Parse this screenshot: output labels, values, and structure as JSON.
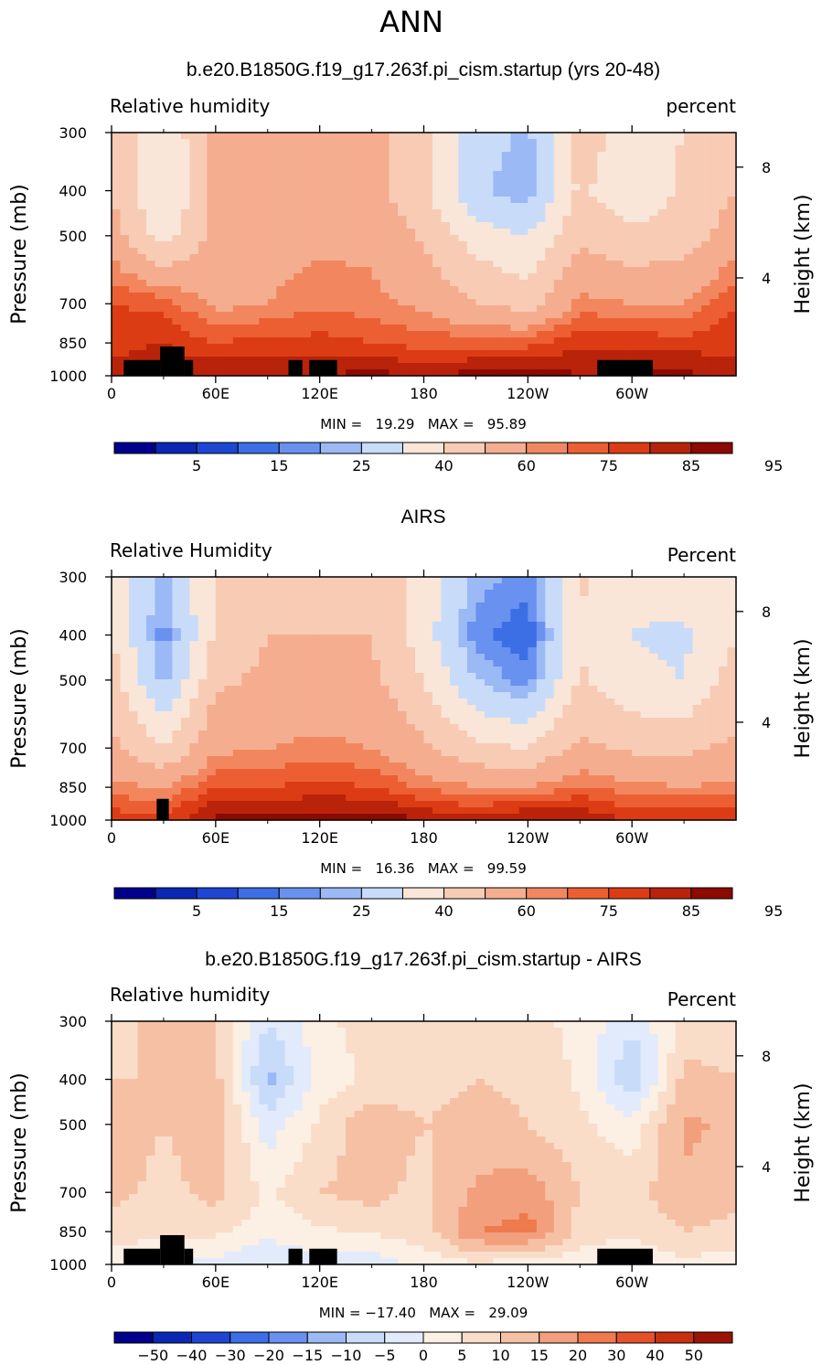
{
  "page_title": "ANN",
  "panels": [
    {
      "title": "b.e20.B1850G.f19_g17.263f.pi_cism.startup (yrs 20-48)",
      "left_label": "Relative humidity",
      "right_label": "percent",
      "min_text": "MIN =   19.29   MAX =   95.89",
      "colorbar_labels": [
        "5",
        "15",
        "25",
        "40",
        "60",
        "75",
        "85",
        "95"
      ]
    },
    {
      "title": "AIRS",
      "left_label": "Relative Humidity",
      "right_label": "Percent",
      "min_text": "MIN =   16.36   MAX =   99.59",
      "colorbar_labels": [
        "5",
        "15",
        "25",
        "40",
        "60",
        "75",
        "85",
        "95"
      ]
    },
    {
      "title": "b.e20.B1850G.f19_g17.263f.pi_cism.startup - AIRS",
      "left_label": "Relative humidity",
      "right_label": "Percent",
      "min_text": "MIN = −17.40   MAX =   29.09",
      "colorbar_labels": [
        "−50",
        "−40",
        "−30",
        "−20",
        "−15",
        "−10",
        "−5",
        "0",
        "5",
        "10",
        "15",
        "20",
        "30",
        "40",
        "50"
      ]
    }
  ],
  "axes": {
    "xlabels": [
      "0",
      "60E",
      "120E",
      "180",
      "120W",
      "60W"
    ],
    "ylabel": "Pressure (mb)",
    "ylabels": [
      "300",
      "400",
      "500",
      "700",
      "850",
      "1000"
    ],
    "y2label": "Height (km)",
    "y2labels": [
      "8",
      "4"
    ]
  },
  "colors": {
    "rh_scale": [
      "#00008c",
      "#0a28b4",
      "#1e46d2",
      "#3c6ee6",
      "#6991f0",
      "#9bb9f5",
      "#c8dcfa",
      "#f9e6d8",
      "#f8cbb4",
      "#f5ad8f",
      "#f2875f",
      "#ec5f32",
      "#dc3c14",
      "#b9230a",
      "#8c0a00"
    ],
    "diff_scale": [
      "#00008c",
      "#0a28b4",
      "#1e46d2",
      "#3c6ee6",
      "#6991f0",
      "#9bb9f5",
      "#c8dcfa",
      "#e1ebfc",
      "#fcefe3",
      "#f9ddc9",
      "#f6c0a4",
      "#f29f7d",
      "#ee7a4d",
      "#e4512a",
      "#c8300f",
      "#9b1405"
    ]
  },
  "chart_data": [
    {
      "type": "heatmap",
      "title": "b.e20.B1850G.f19_g17.263f.pi_cism.startup (yrs 20-48)",
      "xlabel": "",
      "ylabel": "Pressure (mb)",
      "y2label": "Height (km)",
      "x": [
        0,
        30,
        60,
        90,
        120,
        150,
        180,
        210,
        240,
        270,
        300,
        330,
        360
      ],
      "y_pressure_mb": [
        300,
        400,
        500,
        700,
        850,
        1000
      ],
      "levels": [
        5,
        10,
        15,
        20,
        25,
        30,
        40,
        50,
        60,
        70,
        75,
        80,
        85,
        90,
        95
      ],
      "z": [
        [
          58,
          42,
          62,
          60,
          62,
          63,
          55,
          35,
          28,
          55,
          45,
          50,
          58
        ],
        [
          60,
          38,
          62,
          63,
          60,
          64,
          52,
          32,
          25,
          52,
          42,
          52,
          60
        ],
        [
          65,
          45,
          64,
          66,
          68,
          68,
          58,
          45,
          40,
          58,
          52,
          55,
          65
        ],
        [
          80,
          78,
          68,
          70,
          74,
          72,
          68,
          60,
          56,
          72,
          70,
          70,
          80
        ],
        [
          84,
          85,
          80,
          82,
          82,
          80,
          78,
          78,
          78,
          84,
          84,
          82,
          84
        ],
        [
          86,
          88,
          90,
          90,
          90,
          92,
          90,
          92,
          94,
          90,
          90,
          92,
          86
        ]
      ],
      "min": 19.29,
      "max": 95.89
    },
    {
      "type": "heatmap",
      "title": "AIRS",
      "xlabel": "",
      "ylabel": "Pressure (mb)",
      "y2label": "Height (km)",
      "x": [
        0,
        30,
        60,
        90,
        120,
        150,
        180,
        210,
        240,
        270,
        300,
        330,
        360
      ],
      "y_pressure_mb": [
        300,
        400,
        500,
        700,
        850,
        1000
      ],
      "levels": [
        5,
        10,
        15,
        20,
        25,
        30,
        40,
        50,
        60,
        70,
        75,
        80,
        85,
        90,
        95
      ],
      "z": [
        [
          45,
          28,
          50,
          60,
          58,
          55,
          48,
          28,
          22,
          52,
          42,
          45,
          45
        ],
        [
          50,
          22,
          52,
          60,
          60,
          60,
          45,
          22,
          16,
          48,
          40,
          38,
          50
        ],
        [
          55,
          28,
          58,
          62,
          63,
          62,
          50,
          30,
          22,
          52,
          42,
          40,
          55
        ],
        [
          62,
          50,
          68,
          70,
          72,
          70,
          62,
          52,
          50,
          62,
          58,
          58,
          62
        ],
        [
          72,
          70,
          80,
          80,
          82,
          80,
          74,
          70,
          70,
          76,
          72,
          70,
          72
        ],
        [
          84,
          82,
          92,
          92,
          93,
          94,
          90,
          88,
          92,
          90,
          84,
          86,
          84
        ]
      ],
      "min": 16.36,
      "max": 99.59
    },
    {
      "type": "heatmap",
      "title": "b.e20.B1850G.f19_g17.263f.pi_cism.startup - AIRS",
      "xlabel": "",
      "ylabel": "Pressure (mb)",
      "y2label": "Height (km)",
      "x": [
        0,
        30,
        60,
        90,
        120,
        150,
        180,
        210,
        240,
        270,
        300,
        330,
        360
      ],
      "y_pressure_mb": [
        300,
        400,
        500,
        700,
        850,
        1000
      ],
      "levels": [
        -50,
        -40,
        -30,
        -20,
        -15,
        -10,
        -5,
        0,
        5,
        10,
        15,
        20,
        30,
        40,
        50
      ],
      "z": [
        [
          8,
          12,
          10,
          -5,
          3,
          8,
          6,
          8,
          6,
          4,
          -4,
          6,
          8
        ],
        [
          10,
          10,
          12,
          -12,
          2,
          6,
          8,
          10,
          9,
          4,
          -10,
          12,
          10
        ],
        [
          14,
          10,
          14,
          -3,
          6,
          14,
          10,
          12,
          10,
          6,
          2,
          16,
          14
        ],
        [
          12,
          8,
          12,
          4,
          10,
          12,
          8,
          16,
          18,
          10,
          8,
          14,
          12
        ],
        [
          8,
          6,
          6,
          2,
          4,
          6,
          8,
          20,
          22,
          8,
          6,
          10,
          8
        ],
        [
          2,
          0,
          -2,
          -6,
          -2,
          -4,
          2,
          4,
          2,
          2,
          0,
          4,
          2
        ]
      ],
      "min": -17.4,
      "max": 29.09
    }
  ]
}
